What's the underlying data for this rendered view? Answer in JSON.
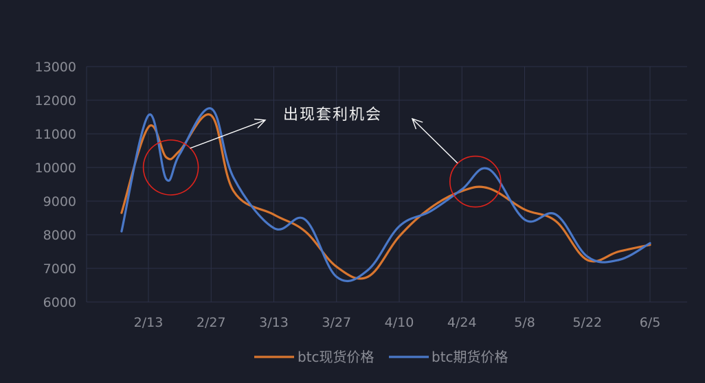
{
  "chart_data": {
    "type": "line",
    "title": "",
    "xlabel": "",
    "ylabel": "",
    "ylim": [
      6000,
      13000
    ],
    "yticks": [
      6000,
      7000,
      8000,
      9000,
      10000,
      11000,
      12000,
      13000
    ],
    "ytick_labels": [
      "6000",
      "7000",
      "8000",
      "9000",
      "10000",
      "11000",
      "12000",
      "13000"
    ],
    "xtick_labels": [
      "2/13",
      "2/27",
      "3/13",
      "3/27",
      "4/10",
      "4/24",
      "5/8",
      "5/22",
      "6/5"
    ],
    "grid": true,
    "legend_position": "bottom",
    "series": [
      {
        "name": "btc现货价格",
        "color": "#d9762f",
        "x": [
          -2,
          -1,
          0,
          1,
          2,
          3,
          4,
          5,
          6,
          7,
          8,
          9,
          10,
          11,
          12,
          13,
          14,
          15,
          16,
          17,
          18,
          19,
          20,
          21,
          22,
          23,
          24,
          25,
          26,
          27,
          28,
          29,
          30,
          31,
          32,
          33,
          34,
          35,
          36,
          37,
          38,
          39,
          40,
          41,
          42,
          43,
          44,
          45,
          46,
          47,
          48,
          49,
          50,
          51,
          52,
          53,
          54,
          55,
          56,
          57,
          58,
          59,
          60,
          61,
          62,
          63,
          64,
          65,
          66,
          67,
          68,
          69,
          70,
          71,
          72,
          73,
          74,
          75,
          76,
          77,
          78,
          79,
          80,
          81,
          82,
          83,
          84,
          85,
          86,
          87,
          88,
          89,
          90,
          91,
          92,
          93,
          94,
          95,
          96,
          97,
          98,
          99,
          100,
          101,
          102,
          103,
          104,
          105,
          106,
          107,
          108,
          109,
          110,
          111,
          112,
          113,
          114,
          115,
          116,
          117,
          118,
          119,
          120,
          121,
          122,
          123,
          124,
          125,
          126,
          127,
          128,
          129,
          130,
          131,
          132,
          133,
          134,
          135,
          136,
          137,
          138,
          139,
          140,
          141,
          142,
          143,
          144,
          145,
          146,
          147,
          148,
          149,
          150,
          151,
          152,
          153,
          154,
          155,
          156,
          157,
          158,
          159,
          160,
          161,
          162,
          163,
          164,
          165,
          166,
          167,
          168,
          169,
          170,
          171,
          172,
          173,
          174,
          175,
          176,
          177,
          178,
          179,
          180,
          181,
          182,
          183,
          184,
          185,
          186,
          187,
          188,
          189,
          190,
          191,
          192,
          193,
          194,
          195,
          196,
          197,
          198,
          199,
          200,
          201,
          202,
          203,
          204,
          205,
          206,
          207,
          208,
          209,
          210,
          211,
          212,
          213,
          214,
          215,
          216,
          217,
          218,
          219,
          220,
          221,
          222,
          223,
          224,
          225,
          226,
          227,
          228,
          229,
          230,
          231,
          232,
          233,
          234,
          235,
          236,
          237,
          238,
          239,
          240,
          241,
          242,
          243,
          244,
          245,
          246,
          247,
          248,
          249,
          250,
          251,
          252,
          253,
          254,
          255,
          256,
          257,
          258,
          259,
          260,
          261,
          262,
          263,
          264,
          265,
          266,
          267,
          268,
          269,
          270,
          271,
          272,
          273,
          274,
          275,
          276,
          277,
          278,
          279,
          280,
          281,
          282,
          283,
          284,
          285,
          286,
          287,
          288,
          289,
          290,
          291,
          292,
          293,
          294,
          295,
          296,
          297,
          298,
          299,
          300,
          301,
          302,
          303,
          304,
          305,
          306,
          307,
          308,
          309,
          310,
          311,
          312,
          313,
          314,
          315,
          316,
          317,
          318,
          319,
          320,
          321,
          322,
          323,
          324,
          325,
          326,
          327,
          328,
          329,
          330,
          331,
          332,
          333,
          334,
          335,
          336,
          337,
          338,
          339,
          340,
          341,
          342,
          343,
          344,
          345,
          346,
          347,
          348,
          349,
          350,
          351,
          352,
          353,
          354,
          355,
          356,
          357,
          358,
          359,
          360
        ],
        "anchors": [
          [
            "2/7",
            8650
          ],
          [
            "2/13",
            11200
          ],
          [
            "2/17",
            10300
          ],
          [
            "2/20",
            10500
          ],
          [
            "2/27",
            11550
          ],
          [
            "3/4",
            9300
          ],
          [
            "3/13",
            8600
          ],
          [
            "3/20",
            8100
          ],
          [
            "3/27",
            7050
          ],
          [
            "4/3",
            6750
          ],
          [
            "4/10",
            7950
          ],
          [
            "4/17",
            8800
          ],
          [
            "4/24",
            9300
          ],
          [
            "4/30",
            9380
          ],
          [
            "5/8",
            8750
          ],
          [
            "5/15",
            8400
          ],
          [
            "5/22",
            7250
          ],
          [
            "5/29",
            7500
          ],
          [
            "6/5",
            7700
          ]
        ]
      },
      {
        "name": "btc期货价格",
        "color": "#4a78c8",
        "anchors": [
          [
            "2/7",
            8100
          ],
          [
            "2/13",
            11550
          ],
          [
            "2/17",
            9650
          ],
          [
            "2/20",
            10400
          ],
          [
            "2/27",
            11750
          ],
          [
            "3/4",
            9700
          ],
          [
            "3/13",
            8200
          ],
          [
            "3/20",
            8450
          ],
          [
            "3/27",
            6750
          ],
          [
            "4/3",
            6950
          ],
          [
            "4/10",
            8250
          ],
          [
            "4/17",
            8700
          ],
          [
            "4/24",
            9350
          ],
          [
            "4/30",
            9950
          ],
          [
            "5/8",
            8450
          ],
          [
            "5/15",
            8600
          ],
          [
            "5/22",
            7350
          ],
          [
            "5/29",
            7250
          ],
          [
            "6/5",
            7750
          ]
        ]
      }
    ],
    "annotations": {
      "text": "出现套利机会"
    }
  }
}
